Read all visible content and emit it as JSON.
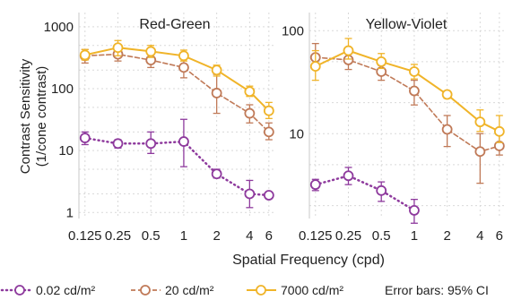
{
  "chart_data": [
    {
      "type": "line",
      "title": "Red-Green",
      "xlabel": "Spatial Frequency (cpd)",
      "ylabel": "Contrast Sensitivity",
      "ylabel2": "(1/cone contrast)",
      "x_scale": "log",
      "y_scale": "log",
      "xlim": [
        0.11,
        7.0
      ],
      "ylim": [
        0.8,
        1700
      ],
      "x_ticks": [
        0.125,
        0.25,
        0.5,
        1,
        2,
        4,
        6
      ],
      "x_tick_labels": [
        "0.125",
        "0.25",
        "0.5",
        "1",
        "2",
        "4",
        "6"
      ],
      "y_ticks": [
        1,
        10,
        100,
        1000
      ],
      "y_tick_labels": [
        "1",
        "10",
        "100",
        "1000"
      ],
      "grid": true,
      "series": [
        {
          "name": "0.02 cd/m²",
          "color": "#8e3a9d",
          "dash": "dot",
          "x": [
            0.125,
            0.25,
            0.5,
            1,
            2,
            4,
            6
          ],
          "y": [
            16,
            13,
            13,
            14,
            4.2,
            2.0,
            1.9
          ],
          "err_low": [
            12.5,
            11,
            9,
            5.5,
            3.6,
            1.2,
            1.9
          ],
          "err_high": [
            20,
            15,
            20,
            32,
            5,
            3.3,
            1.9
          ]
        },
        {
          "name": "20 cd/m²",
          "color": "#c07a58",
          "dash": "dash",
          "x": [
            0.125,
            0.25,
            0.5,
            1,
            2,
            4,
            6
          ],
          "y": [
            340,
            360,
            290,
            220,
            85,
            40,
            20
          ],
          "err_low": [
            260,
            280,
            220,
            150,
            40,
            28,
            15
          ],
          "err_high": [
            430,
            440,
            370,
            310,
            170,
            55,
            28
          ]
        },
        {
          "name": "7000 cd/m²",
          "color": "#f0b429",
          "dash": "solid",
          "x": [
            0.125,
            0.25,
            0.5,
            1,
            2,
            4,
            6
          ],
          "y": [
            350,
            460,
            400,
            340,
            200,
            90,
            44
          ],
          "err_low": [
            290,
            340,
            320,
            280,
            160,
            75,
            33
          ],
          "err_high": [
            430,
            600,
            500,
            420,
            240,
            110,
            60
          ]
        }
      ]
    },
    {
      "type": "line",
      "title": "Yellow-Violet",
      "x_scale": "log",
      "y_scale": "log",
      "xlim": [
        0.11,
        7.0
      ],
      "ylim": [
        1.5,
        150
      ],
      "x_ticks": [
        0.125,
        0.25,
        0.5,
        1,
        2,
        4,
        6
      ],
      "x_tick_labels": [
        "0.125",
        "0.25",
        "0.5",
        "1",
        "2",
        "4",
        "6"
      ],
      "y_ticks": [
        10,
        100
      ],
      "y_tick_labels": [
        "10",
        "100"
      ],
      "grid": true,
      "series": [
        {
          "name": "0.02 cd/m²",
          "color": "#8e3a9d",
          "dash": "dot",
          "x": [
            0.125,
            0.25,
            0.5,
            1
          ],
          "y": [
            3.2,
            3.9,
            2.8,
            1.8
          ],
          "err_low": [
            2.8,
            3.2,
            2.2,
            1.35
          ],
          "err_high": [
            3.6,
            4.7,
            3.4,
            2.3
          ]
        },
        {
          "name": "20 cd/m²",
          "color": "#c07a58",
          "dash": "dash",
          "x": [
            0.125,
            0.25,
            0.5,
            1,
            2,
            4,
            6
          ],
          "y": [
            55,
            52,
            40,
            26,
            11,
            6.7,
            7.6
          ],
          "err_low": [
            44,
            42,
            33,
            19,
            7.5,
            3.3,
            6.2
          ],
          "err_high": [
            75,
            64,
            46,
            33,
            15,
            10,
            10
          ]
        },
        {
          "name": "7000 cd/m²",
          "color": "#f0b429",
          "dash": "solid",
          "x": [
            0.125,
            0.25,
            0.5,
            1,
            2,
            4,
            6
          ],
          "y": [
            45,
            64,
            50,
            40,
            24,
            13,
            10.5
          ],
          "err_low": [
            33,
            53,
            43,
            34,
            22,
            10.5,
            8.2
          ],
          "err_high": [
            64,
            84,
            60,
            47,
            26,
            17,
            15
          ]
        }
      ]
    }
  ],
  "legend": {
    "items": [
      {
        "label": "0.02 cd/m²",
        "color": "#8e3a9d",
        "dash": "dot"
      },
      {
        "label": "20 cd/m²",
        "color": "#c07a58",
        "dash": "dash"
      },
      {
        "label": "7000 cd/m²",
        "color": "#f0b429",
        "dash": "solid"
      }
    ],
    "note": "Error bars: 95% CI"
  }
}
